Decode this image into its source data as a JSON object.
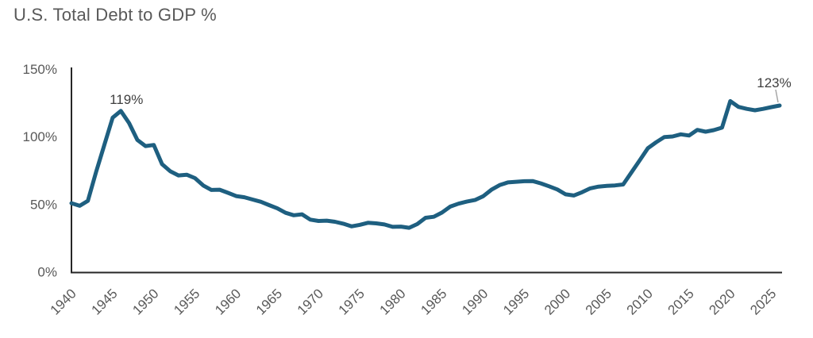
{
  "title": "U.S. Total Debt to GDP %",
  "colors": {
    "line": "#1e5f80",
    "axis": "#262626",
    "tick_label": "#595959",
    "annotation": "#3f3f3f",
    "leader": "#a6a6a6",
    "background": "#ffffff"
  },
  "chart_data": {
    "type": "line",
    "title": "U.S. Total Debt to GDP %",
    "series_name": "U.S. Total Debt to GDP %",
    "xlabel": "",
    "ylabel": "",
    "xlim": [
      1940,
      2026
    ],
    "ylim": [
      0,
      150
    ],
    "grid": false,
    "legend": false,
    "y_ticks": [
      {
        "value": 0,
        "label": "0%"
      },
      {
        "value": 50,
        "label": "50%"
      },
      {
        "value": 100,
        "label": "100%"
      },
      {
        "value": 150,
        "label": "150%"
      }
    ],
    "x_ticks": [
      {
        "value": 1940,
        "label": "1940"
      },
      {
        "value": 1945,
        "label": "1945"
      },
      {
        "value": 1950,
        "label": "1950"
      },
      {
        "value": 1955,
        "label": "1955"
      },
      {
        "value": 1960,
        "label": "1960"
      },
      {
        "value": 1965,
        "label": "1965"
      },
      {
        "value": 1970,
        "label": "1970"
      },
      {
        "value": 1975,
        "label": "1975"
      },
      {
        "value": 1980,
        "label": "1980"
      },
      {
        "value": 1985,
        "label": "1985"
      },
      {
        "value": 1990,
        "label": "1990"
      },
      {
        "value": 1995,
        "label": "1995"
      },
      {
        "value": 2000,
        "label": "2000"
      },
      {
        "value": 2005,
        "label": "2005"
      },
      {
        "value": 2010,
        "label": "2010"
      },
      {
        "value": 2015,
        "label": "2015"
      },
      {
        "value": 2020,
        "label": "2020"
      },
      {
        "value": 2025,
        "label": "2025"
      }
    ],
    "points": [
      [
        1940,
        50.7
      ],
      [
        1941,
        48.8
      ],
      [
        1942,
        52.5
      ],
      [
        1943,
        74.0
      ],
      [
        1944,
        94.0
      ],
      [
        1945,
        114.0
      ],
      [
        1946,
        119.0
      ],
      [
        1947,
        110.0
      ],
      [
        1948,
        97.5
      ],
      [
        1949,
        93.0
      ],
      [
        1950,
        93.8
      ],
      [
        1951,
        79.6
      ],
      [
        1952,
        74.3
      ],
      [
        1953,
        71.3
      ],
      [
        1954,
        71.8
      ],
      [
        1955,
        69.3
      ],
      [
        1956,
        63.8
      ],
      [
        1957,
        60.5
      ],
      [
        1958,
        60.7
      ],
      [
        1959,
        58.4
      ],
      [
        1960,
        56.0
      ],
      [
        1961,
        55.1
      ],
      [
        1962,
        53.4
      ],
      [
        1963,
        51.8
      ],
      [
        1964,
        49.3
      ],
      [
        1965,
        46.9
      ],
      [
        1966,
        43.6
      ],
      [
        1967,
        41.8
      ],
      [
        1968,
        42.5
      ],
      [
        1969,
        38.6
      ],
      [
        1970,
        37.6
      ],
      [
        1971,
        37.8
      ],
      [
        1972,
        37.0
      ],
      [
        1973,
        35.6
      ],
      [
        1974,
        33.6
      ],
      [
        1975,
        34.7
      ],
      [
        1976,
        36.2
      ],
      [
        1977,
        35.8
      ],
      [
        1978,
        35.0
      ],
      [
        1979,
        33.2
      ],
      [
        1980,
        33.4
      ],
      [
        1981,
        32.5
      ],
      [
        1982,
        35.3
      ],
      [
        1983,
        39.9
      ],
      [
        1984,
        40.7
      ],
      [
        1985,
        43.8
      ],
      [
        1986,
        48.2
      ],
      [
        1987,
        50.4
      ],
      [
        1988,
        51.9
      ],
      [
        1989,
        53.1
      ],
      [
        1990,
        55.9
      ],
      [
        1991,
        60.7
      ],
      [
        1992,
        64.1
      ],
      [
        1993,
        66.1
      ],
      [
        1994,
        66.6
      ],
      [
        1995,
        67.0
      ],
      [
        1996,
        67.1
      ],
      [
        1997,
        65.4
      ],
      [
        1998,
        63.2
      ],
      [
        1999,
        60.9
      ],
      [
        2000,
        57.3
      ],
      [
        2001,
        56.4
      ],
      [
        2002,
        58.8
      ],
      [
        2003,
        61.7
      ],
      [
        2004,
        63.0
      ],
      [
        2005,
        63.5
      ],
      [
        2006,
        63.9
      ],
      [
        2007,
        64.6
      ],
      [
        2008,
        73.5
      ],
      [
        2009,
        82.4
      ],
      [
        2010,
        91.4
      ],
      [
        2011,
        95.8
      ],
      [
        2012,
        99.7
      ],
      [
        2013,
        100.1
      ],
      [
        2014,
        101.7
      ],
      [
        2015,
        100.8
      ],
      [
        2016,
        105.0
      ],
      [
        2017,
        103.6
      ],
      [
        2018,
        104.8
      ],
      [
        2019,
        106.6
      ],
      [
        2020,
        126.3
      ],
      [
        2021,
        122.0
      ],
      [
        2022,
        120.5
      ],
      [
        2023,
        119.5
      ],
      [
        2024,
        120.5
      ],
      [
        2025,
        121.8
      ],
      [
        2026,
        123.0
      ]
    ],
    "annotations": [
      {
        "x": 1946,
        "y": 119,
        "label": "119%",
        "leader": false
      },
      {
        "x": 2026,
        "y": 123,
        "label": "123%",
        "leader": true
      }
    ]
  }
}
